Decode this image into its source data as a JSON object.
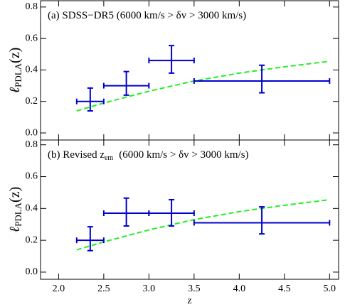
{
  "chart_data": [
    {
      "type": "errorbar",
      "annotation": [
        "(a) SDSS−DR5   (6000 km/s > δv > 3000 km/s)"
      ],
      "ylabel": [
        "ℓ",
        "PDLA",
        "(z)"
      ],
      "xlim": [
        1.8,
        5.1
      ],
      "xticks": [
        2,
        2.5,
        3,
        3.5,
        4,
        4.5,
        5
      ],
      "ylim": [
        -0.045,
        0.84
      ],
      "yticks": [
        {
          "value": 0,
          "label": "0.0"
        },
        {
          "value": 0.2,
          "label": "0.2"
        },
        {
          "value": 0.4,
          "label": "0.4"
        },
        {
          "value": 0.6,
          "label": "0.6"
        },
        {
          "value": 0.8,
          "label": "0.8"
        }
      ],
      "points": {
        "color": "#0000cc",
        "x": [
          2.35,
          2.75,
          3.25,
          4.25
        ],
        "x_low": [
          2.2,
          2.5,
          3.0,
          3.5
        ],
        "x_high": [
          2.5,
          3.0,
          3.5,
          5.0
        ],
        "y": [
          0.2,
          0.3,
          0.46,
          0.33
        ],
        "y_low": [
          0.14,
          0.24,
          0.38,
          0.255
        ],
        "y_high": [
          0.285,
          0.39,
          0.555,
          0.43
        ]
      },
      "curve": {
        "color": "#22ee22",
        "dashed": true,
        "x": [
          2.2,
          2.5,
          3.0,
          3.5,
          4.0,
          4.5,
          5.0
        ],
        "y": [
          0.14,
          0.19,
          0.265,
          0.33,
          0.38,
          0.42,
          0.455
        ]
      }
    },
    {
      "type": "errorbar",
      "annotation": [
        "(b) Revised z",
        "em",
        "(6000 km/s > δv > 3000 km/s)"
      ],
      "ylabel": [
        "ℓ",
        "PDLA",
        "(z)"
      ],
      "xlabel": "z",
      "xlim": [
        1.8,
        5.1
      ],
      "xticks": [
        {
          "value": 2,
          "label": "2.0"
        },
        {
          "value": 2.5,
          "label": "2.5"
        },
        {
          "value": 3,
          "label": "3.0"
        },
        {
          "value": 3.5,
          "label": "3.5"
        },
        {
          "value": 4,
          "label": "4.0"
        },
        {
          "value": 4.5,
          "label": "4.5"
        },
        {
          "value": 5,
          "label": "5.0"
        }
      ],
      "ylim": [
        -0.045,
        0.83
      ],
      "yticks": [
        {
          "value": 0,
          "label": "0.0"
        },
        {
          "value": 0.2,
          "label": "0.2"
        },
        {
          "value": 0.4,
          "label": "0.4"
        },
        {
          "value": 0.6,
          "label": "0.6"
        },
        {
          "value": 0.8,
          "label": "0.8"
        }
      ],
      "points": {
        "color": "#0000cc",
        "x": [
          2.35,
          2.75,
          3.25,
          4.25
        ],
        "x_low": [
          2.2,
          2.5,
          3.0,
          3.5
        ],
        "x_high": [
          2.5,
          3.0,
          3.5,
          5.0
        ],
        "y": [
          0.2,
          0.37,
          0.37,
          0.31
        ],
        "y_low": [
          0.135,
          0.29,
          0.29,
          0.24
        ],
        "y_high": [
          0.285,
          0.465,
          0.455,
          0.41
        ]
      },
      "curve": {
        "color": "#22ee22",
        "dashed": true,
        "x": [
          2.2,
          2.5,
          3.0,
          3.5,
          4.0,
          4.5,
          5.0
        ],
        "y": [
          0.14,
          0.19,
          0.265,
          0.33,
          0.38,
          0.42,
          0.455
        ]
      }
    }
  ]
}
